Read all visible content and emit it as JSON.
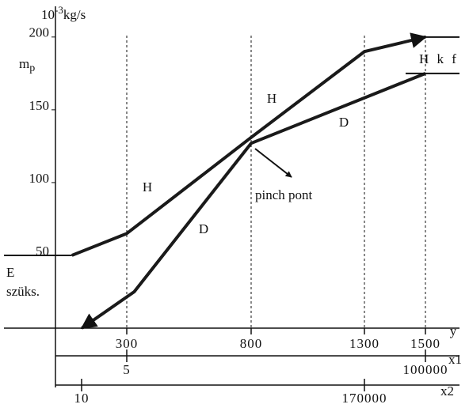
{
  "chart_data": {
    "type": "line",
    "y_label": {
      "base": "10",
      "exponent": "-3",
      "unit": "kg/s"
    },
    "y_symbol": {
      "base": "m",
      "sub": "p"
    },
    "x_label": "y",
    "ylim": [
      0,
      220
    ],
    "yticks": [
      50,
      100,
      150,
      200
    ],
    "xlim": [
      14,
      1610
    ],
    "xticks": [
      300,
      800,
      1300,
      1500
    ],
    "x1_label": "x1",
    "x1ticks": [
      5,
      100000
    ],
    "x2_label": "x2",
    "x2ticks": [
      10,
      170000
    ],
    "series": [
      {
        "name": "H",
        "color": "#1a1a1a",
        "x": [
          80,
          300,
          800,
          1300,
          1500
        ],
        "values": [
          50,
          65,
          131,
          190,
          200
        ]
      },
      {
        "name": "D",
        "color": "#1a1a1a",
        "x": [
          120,
          330,
          800,
          1500
        ],
        "values": [
          0,
          25,
          127,
          175
        ]
      }
    ],
    "annotations": {
      "pinch": "pinch pont",
      "hkf": "H k f",
      "e": "E",
      "szuks": "szüks."
    }
  }
}
